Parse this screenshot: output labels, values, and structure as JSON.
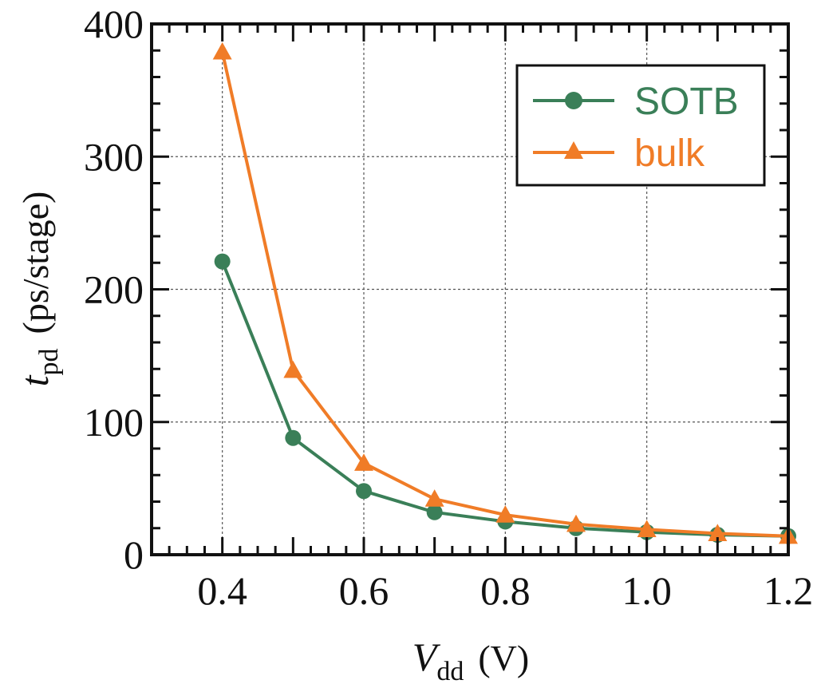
{
  "chart_data": {
    "type": "line",
    "title": "",
    "xlabel": {
      "symbol": "V",
      "subscript": "dd",
      "unit": "(V)"
    },
    "ylabel": {
      "symbol": "t",
      "subscript": "pd",
      "unit": "(ps/stage)"
    },
    "xlim": [
      0.3,
      1.2
    ],
    "ylim": [
      0,
      400
    ],
    "xticks": [
      0.4,
      0.6,
      0.8,
      1.0,
      1.2
    ],
    "xtick_labels": [
      "0.4",
      "0.6",
      "0.8",
      "1.0",
      "1.2"
    ],
    "yticks": [
      0,
      100,
      200,
      300,
      400
    ],
    "ytick_labels": [
      "0",
      "100",
      "200",
      "300",
      "400"
    ],
    "grid": true,
    "legend_position": "top-right",
    "x": [
      0.4,
      0.5,
      0.6,
      0.7,
      0.8,
      0.9,
      1.0,
      1.1,
      1.2
    ],
    "series": [
      {
        "name": "SOTB",
        "marker": "circle",
        "color": "#3a7f58",
        "values": [
          221,
          88,
          48,
          32,
          25,
          20,
          17,
          15,
          14
        ]
      },
      {
        "name": "bulk",
        "marker": "triangle",
        "color": "#f07c27",
        "values": [
          379,
          139,
          69,
          42,
          30,
          23,
          19,
          16,
          14
        ]
      }
    ]
  }
}
